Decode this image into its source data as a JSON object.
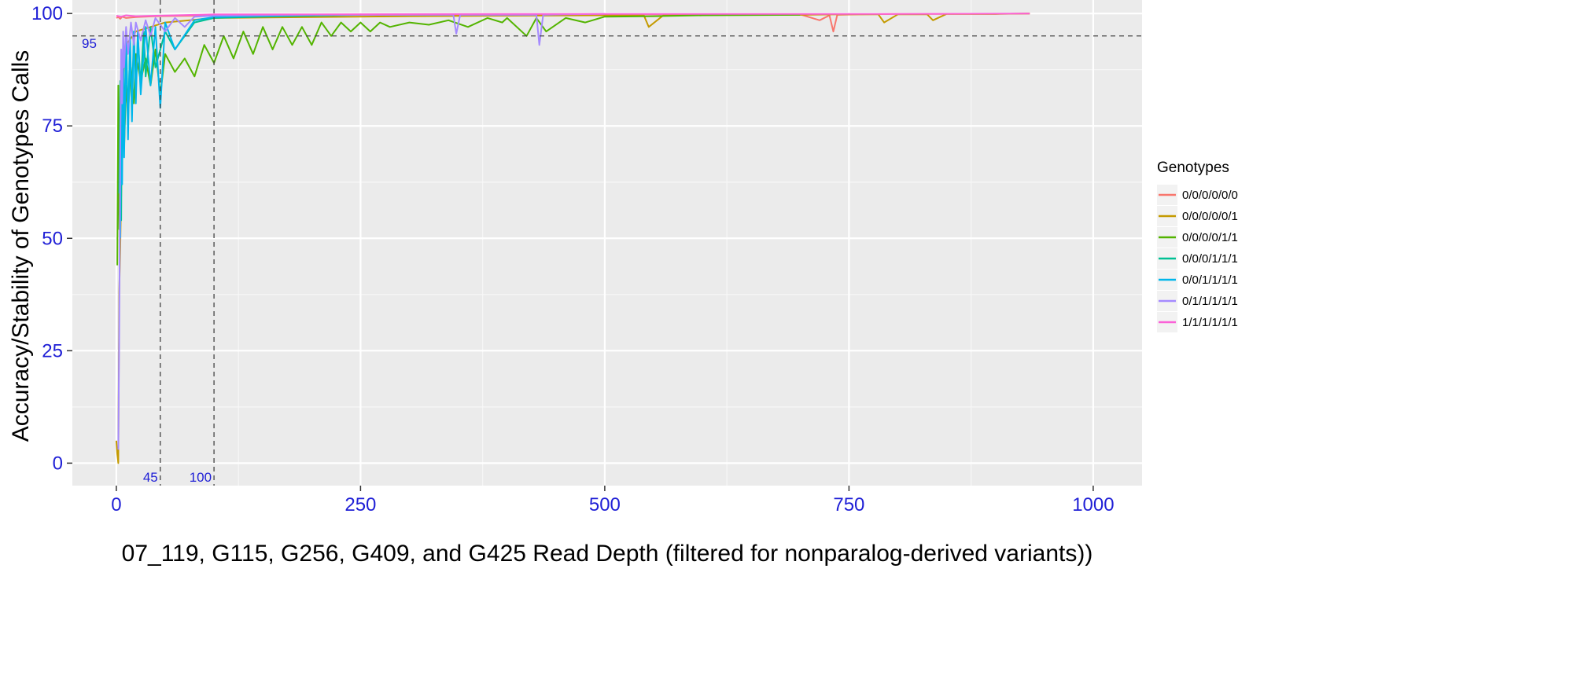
{
  "chart_data": {
    "type": "line",
    "xlabel": "07_119, G115, G256, G409, and G425 Read Depth (filtered for nonparalog-derived variants))",
    "ylabel": "Accuracy/Stability of Genotypes Calls",
    "xlim": [
      -45,
      1050
    ],
    "ylim": [
      -5,
      103
    ],
    "x_ticks": [
      0,
      250,
      500,
      750,
      1000
    ],
    "x_tick_labels": [
      "0",
      "250",
      "500",
      "750",
      "1000"
    ],
    "y_ticks": [
      0,
      25,
      50,
      75,
      100
    ],
    "y_tick_labels": [
      "0",
      "25",
      "50",
      "75",
      "100"
    ],
    "grid": true,
    "background": "#ebebeb",
    "reference_lines": [
      {
        "axis": "y",
        "value": 95,
        "label": "95",
        "style": "dashed"
      },
      {
        "axis": "x",
        "value": 45,
        "label": "45",
        "style": "dashed"
      },
      {
        "axis": "x",
        "value": 100,
        "label": "100",
        "style": "dashed"
      }
    ],
    "legend": {
      "title": "Genotypes",
      "position": "right"
    },
    "series": [
      {
        "name": "0/0/0/0/0/0",
        "color": "#f8766d",
        "x": [
          0,
          2,
          4,
          6,
          10,
          20,
          40,
          80,
          150,
          300,
          500,
          700,
          720,
          730,
          734,
          738,
          760,
          800,
          900,
          935
        ],
        "y": [
          99,
          99.2,
          98.8,
          99.3,
          99,
          99.2,
          99.4,
          99.5,
          99.6,
          99.7,
          99.8,
          99.8,
          98.5,
          99.6,
          96,
          99.7,
          99.8,
          99.9,
          99.9,
          100
        ]
      },
      {
        "name": "0/0/0/0/0/1",
        "color": "#c49a00",
        "x": [
          0,
          1,
          2,
          3,
          4,
          5,
          6,
          8,
          10,
          20,
          50,
          100,
          200,
          300,
          400,
          500,
          540,
          545,
          560,
          600,
          650,
          700,
          740,
          760,
          780,
          786,
          800,
          830,
          836,
          850,
          900,
          935
        ],
        "y": [
          5,
          2,
          0,
          38,
          48,
          60,
          80,
          90,
          93,
          96,
          98,
          99,
          99.2,
          99.4,
          99.5,
          99.6,
          99.6,
          97,
          99.6,
          99.7,
          99.7,
          99.7,
          99.8,
          99.8,
          99.8,
          98,
          99.8,
          99.8,
          98.5,
          99.9,
          99.9,
          100
        ]
      },
      {
        "name": "0/0/0/0/1/1",
        "color": "#53b400",
        "x": [
          1,
          2,
          3,
          4,
          5,
          6,
          8,
          10,
          12,
          15,
          18,
          20,
          25,
          30,
          35,
          40,
          45,
          50,
          60,
          70,
          80,
          90,
          100,
          110,
          120,
          130,
          140,
          150,
          160,
          170,
          180,
          190,
          200,
          210,
          220,
          230,
          240,
          250,
          260,
          270,
          280,
          300,
          320,
          340,
          360,
          380,
          395,
          400,
          420,
          430,
          440,
          460,
          480,
          500,
          550,
          600,
          700
        ],
        "y": [
          44,
          84,
          52,
          80,
          63,
          90,
          70,
          84,
          78,
          88,
          80,
          91,
          85,
          90,
          84,
          92,
          82,
          91,
          87,
          90,
          86,
          93,
          89,
          95,
          90,
          96,
          91,
          97,
          92,
          97,
          93,
          97,
          93,
          98,
          95,
          98,
          96,
          98,
          96,
          98,
          97,
          98,
          97.5,
          98.5,
          97,
          99,
          98,
          99,
          95,
          99,
          96,
          99,
          98,
          99.3,
          99.4,
          99.6,
          99.7
        ]
      },
      {
        "name": "0/0/0/1/1/1",
        "color": "#00c094",
        "x": [
          3,
          4,
          5,
          6,
          8,
          10,
          12,
          14,
          16,
          18,
          20,
          22,
          25,
          28,
          30,
          35,
          40,
          50,
          60,
          80,
          100,
          150,
          200,
          250
        ],
        "y": [
          60,
          85,
          54,
          90,
          73,
          95,
          76,
          93,
          80,
          96,
          82,
          95,
          84,
          96,
          86,
          97,
          88,
          96,
          92,
          98,
          99,
          99.3,
          99.5,
          99.7
        ]
      },
      {
        "name": "0/0/1/1/1/1",
        "color": "#00b6eb",
        "x": [
          4,
          5,
          6,
          7,
          8,
          10,
          12,
          14,
          16,
          18,
          20,
          22,
          25,
          30,
          35,
          40,
          45,
          50,
          60,
          80,
          100,
          150,
          200
        ],
        "y": [
          50,
          85,
          62,
          92,
          68,
          94,
          72,
          95,
          76,
          96,
          80,
          96,
          82,
          97,
          84,
          97,
          79,
          98,
          92,
          98.5,
          99.2,
          99.5,
          99.7
        ]
      },
      {
        "name": "0/1/1/1/1/1",
        "color": "#a58aff",
        "x": [
          2,
          3,
          4,
          5,
          6,
          7,
          8,
          10,
          12,
          15,
          18,
          20,
          25,
          30,
          35,
          40,
          50,
          60,
          70,
          80,
          100,
          150,
          200,
          300,
          345,
          348,
          352,
          400,
          430,
          433,
          437,
          460,
          500
        ],
        "y": [
          3,
          30,
          70,
          92,
          80,
          96,
          88,
          97,
          91,
          98,
          93,
          98,
          94,
          98.5,
          95,
          99,
          96,
          99,
          97,
          99.3,
          99.5,
          99.6,
          99.7,
          99.7,
          99.7,
          95.5,
          99.7,
          99.7,
          99.7,
          93,
          99.7,
          99.8,
          99.9
        ]
      },
      {
        "name": "1/1/1/1/1/1",
        "color": "#fb61d7",
        "x": [
          0,
          5,
          10,
          20,
          40,
          60,
          80,
          100,
          200,
          400,
          600,
          800,
          935
        ],
        "y": [
          99.5,
          99.3,
          99.6,
          99.4,
          99.5,
          99.6,
          99.7,
          99.8,
          99.8,
          99.9,
          99.9,
          99.9,
          100
        ]
      }
    ]
  }
}
